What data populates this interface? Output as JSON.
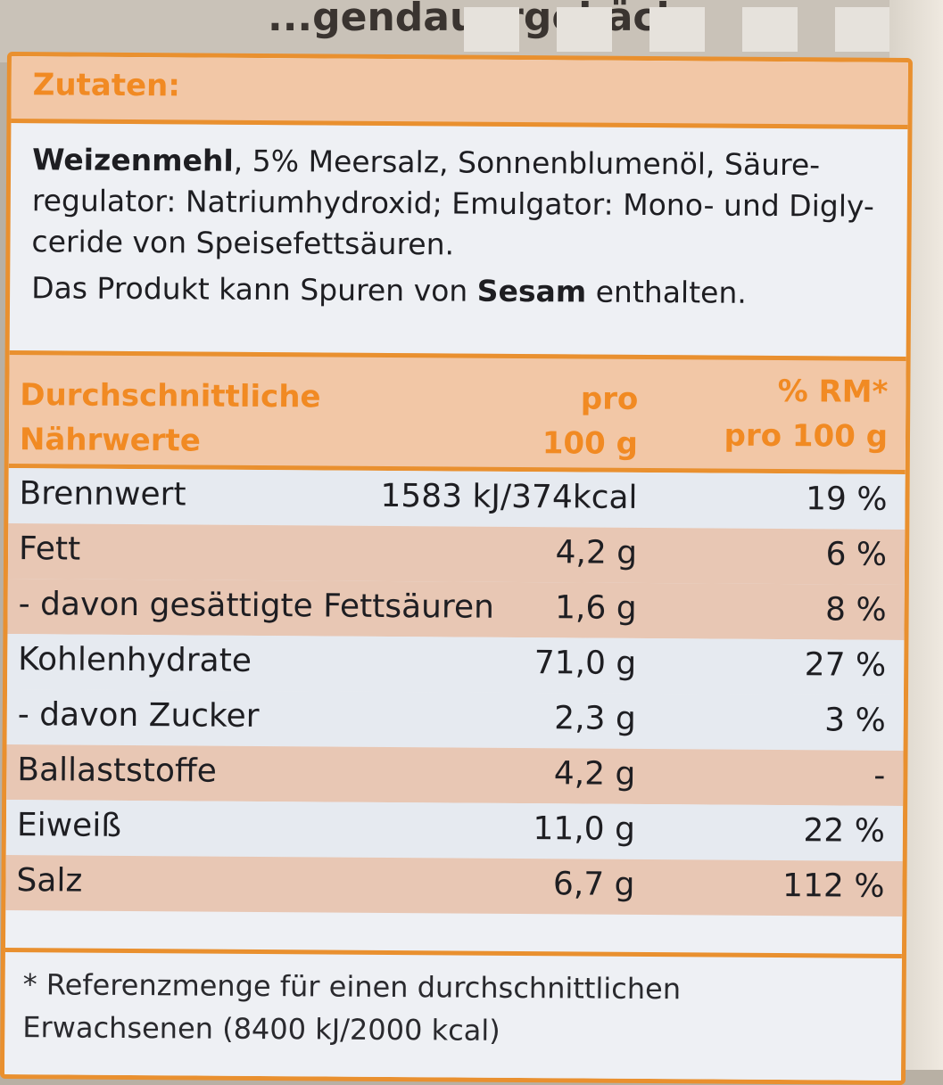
{
  "package": {
    "title": "...gendauergebäck"
  },
  "ingredients": {
    "heading": "Zutaten:",
    "bold_lead": "Weizenmehl",
    "text": ", 5% Meersalz, Sonnenblumenöl, Säure-regulator: Natriumhydroxid; Emulgator: Mono- und Digly-ceride von Speisefettsäuren.",
    "allergen_pre": "Das Produkt kann Spuren von ",
    "allergen_bold": "Sesam",
    "allergen_post": " enthalten."
  },
  "nutrition": {
    "col1": [
      "Durchschnittliche",
      "Nährwerte"
    ],
    "col2": [
      "pro",
      "100 g"
    ],
    "col3": [
      "% RM*",
      "pro 100 g"
    ],
    "rows": [
      {
        "name": "Brennwert",
        "value": "1583 kJ/374kcal",
        "rm": "19 %"
      },
      {
        "name": "Fett",
        "value": "4,2 g",
        "rm": "6 %"
      },
      {
        "name": "- davon gesättigte Fettsäuren",
        "value": "1,6 g",
        "rm": "8 %"
      },
      {
        "name": "Kohlenhydrate",
        "value": "71,0 g",
        "rm": "27 %"
      },
      {
        "name": "- davon Zucker",
        "value": "2,3 g",
        "rm": "3 %"
      },
      {
        "name": "Ballaststoffe",
        "value": "4,2 g",
        "rm": "-"
      },
      {
        "name": "Eiweiß",
        "value": "11,0 g",
        "rm": "22 %"
      },
      {
        "name": "Salz",
        "value": "6,7 g",
        "rm": "112 %"
      }
    ]
  },
  "footnote": [
    "* Referenzmenge für einen durchschnittlichen",
    "Erwachsenen (8400 kJ/2000 kcal)"
  ]
}
